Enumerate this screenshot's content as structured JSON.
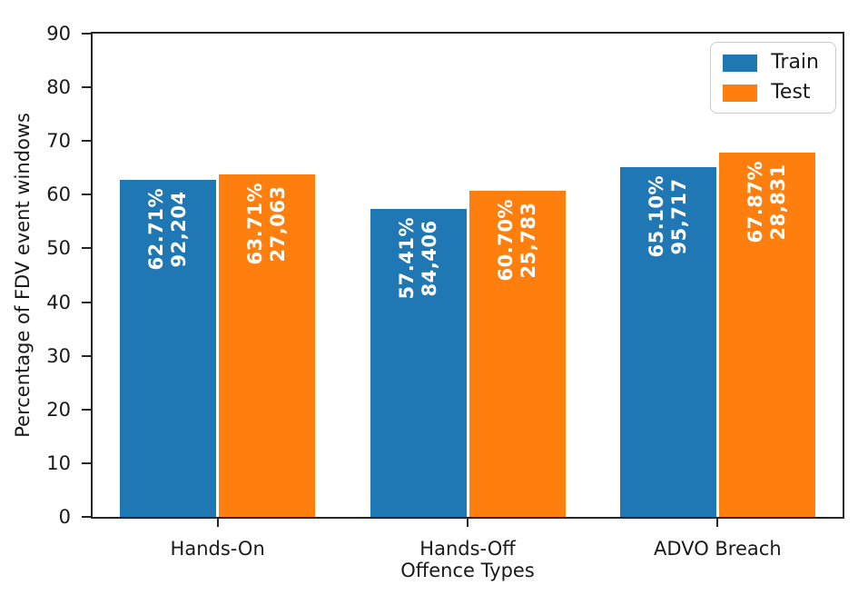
{
  "chart_data": {
    "type": "bar",
    "title": "",
    "xlabel": "Offence Types",
    "ylabel": "Percentage of FDV event windows",
    "ylim": [
      0,
      90
    ],
    "yticks": [
      0,
      10,
      20,
      30,
      40,
      50,
      60,
      70,
      80,
      90
    ],
    "categories": [
      "Hands-On",
      "Hands-Off",
      "ADVO Breach"
    ],
    "series": [
      {
        "name": "Train",
        "color": "#1f77b4",
        "values": [
          62.71,
          57.41,
          65.1
        ],
        "bar_labels": [
          {
            "pct": "62.71%",
            "count": "92,204"
          },
          {
            "pct": "57.41%",
            "count": "84,406"
          },
          {
            "pct": "65.10%",
            "count": "95,717"
          }
        ]
      },
      {
        "name": "Test",
        "color": "#ff7f0e",
        "values": [
          63.71,
          60.7,
          67.87
        ],
        "bar_labels": [
          {
            "pct": "63.71%",
            "count": "27,063"
          },
          {
            "pct": "60.70%",
            "count": "25,783"
          },
          {
            "pct": "67.87%",
            "count": "28,831"
          }
        ]
      }
    ],
    "legend": {
      "position": "upper right",
      "items": [
        {
          "label": "Train"
        },
        {
          "label": "Test"
        }
      ]
    },
    "grid": false
  },
  "colors": {
    "axis": "#262626",
    "text": "#1a1a1a",
    "bar_label_text": "#ffffff",
    "background": "#ffffff",
    "legend_border": "#cccccc"
  }
}
